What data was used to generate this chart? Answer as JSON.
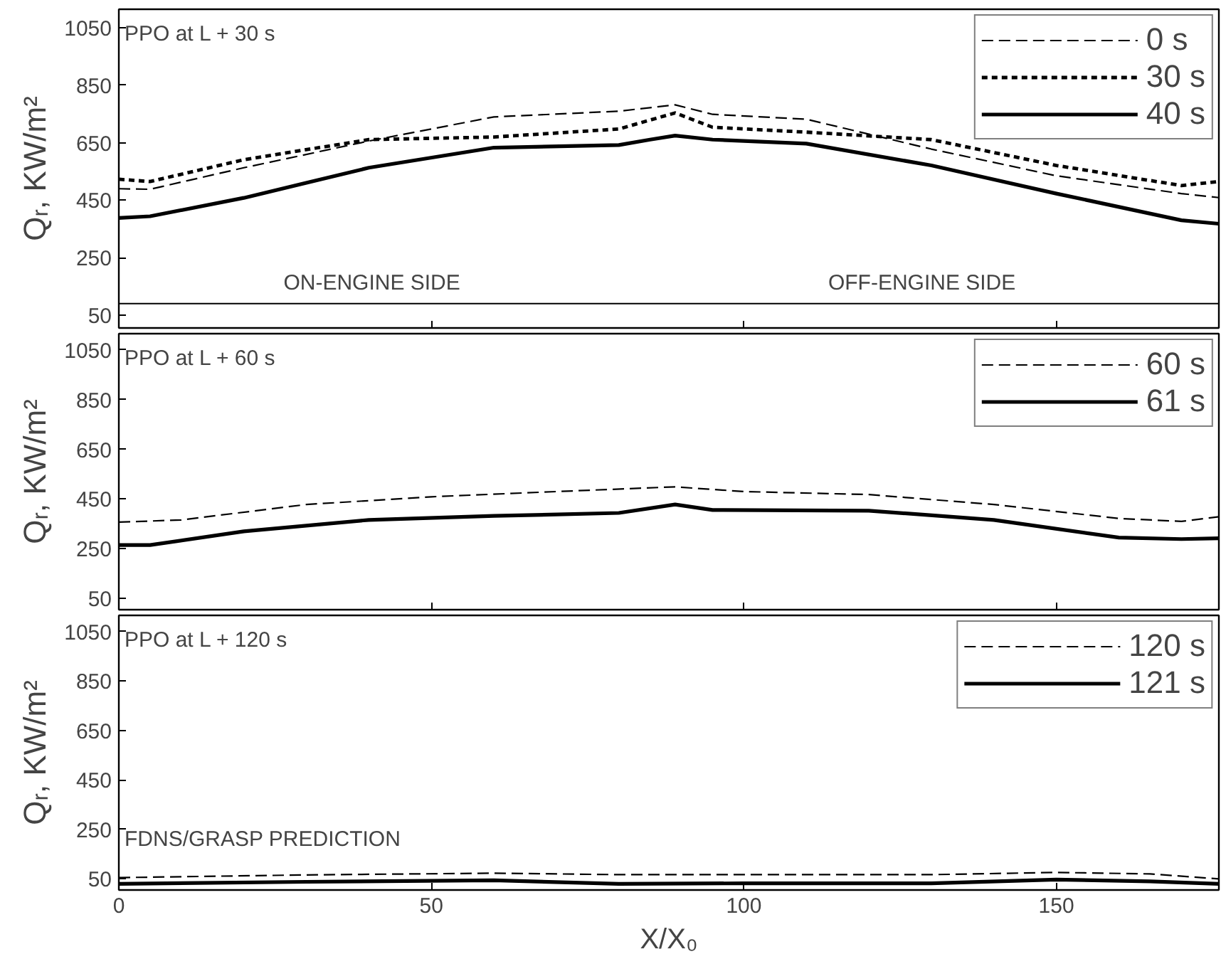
{
  "chart_data": [
    {
      "type": "line",
      "title": "PPO at L + 30 s",
      "ylabel": "Qᵣ, KW/m²",
      "xlim": [
        0,
        176
      ],
      "xticks": [
        0,
        50,
        100,
        150
      ],
      "ylim": [
        5,
        1115
      ],
      "yticks": [
        50,
        250,
        450,
        650,
        850,
        1050
      ],
      "tick_labels": "y",
      "legend": "top right",
      "grid": false,
      "series": [
        {
          "name": "0 s",
          "color": "#000000",
          "line_style": "dashed",
          "x": [
            0,
            5,
            20,
            40,
            60,
            80,
            89,
            95,
            110,
            130,
            150,
            170,
            176
          ],
          "values": [
            490,
            488,
            563,
            656,
            740,
            760,
            782,
            749,
            732,
            628,
            535,
            473,
            459
          ]
        },
        {
          "name": "30 s",
          "color": "#000000",
          "line_style": "dotted",
          "x": [
            0,
            5,
            20,
            40,
            60,
            80,
            89,
            95,
            110,
            130,
            150,
            170,
            176
          ],
          "values": [
            523,
            515,
            591,
            661,
            670,
            698,
            754,
            704,
            687,
            661,
            571,
            501,
            515
          ]
        },
        {
          "name": "40 s",
          "color": "#000000",
          "line_style": "solid",
          "x": [
            0,
            5,
            20,
            40,
            60,
            80,
            85,
            89,
            95,
            110,
            130,
            150,
            170,
            176
          ],
          "values": [
            388,
            394,
            458,
            563,
            633,
            642,
            661,
            675,
            661,
            647,
            571,
            473,
            380,
            368
          ]
        }
      ],
      "ref_lines": [
        {
          "axis": "y",
          "value": 90
        }
      ],
      "annotations": [
        "ON-ENGINE SIDE",
        "OFF-ENGINE SIDE"
      ]
    },
    {
      "type": "line",
      "title": "PPO at L + 60 s",
      "ylabel": "Qᵣ, KW/m²",
      "xlim": [
        0,
        176
      ],
      "xticks": [
        0,
        50,
        100,
        150
      ],
      "ylim": [
        5,
        1115
      ],
      "yticks": [
        50,
        250,
        450,
        650,
        850,
        1050
      ],
      "tick_labels": "y",
      "legend": "top right",
      "grid": false,
      "series": [
        {
          "name": "60 s",
          "color": "#000000",
          "line_style": "dashed",
          "x": [
            0,
            10,
            30,
            50,
            70,
            89,
            100,
            120,
            140,
            160,
            170,
            176
          ],
          "values": [
            357,
            366,
            428,
            459,
            480,
            499,
            480,
            468,
            428,
            372,
            360,
            379
          ]
        },
        {
          "name": "61 s",
          "color": "#000000",
          "line_style": "solid",
          "x": [
            0,
            5,
            20,
            40,
            60,
            80,
            89,
            95,
            120,
            140,
            160,
            170,
            176
          ],
          "values": [
            265,
            265,
            320,
            366,
            382,
            394,
            428,
            406,
            403,
            366,
            295,
            289,
            292
          ]
        }
      ]
    },
    {
      "type": "line",
      "title": "PPO at L + 120 s",
      "xlabel": "X/X₀",
      "ylabel": "Qᵣ, KW/m²",
      "xlim": [
        0,
        176
      ],
      "xticks": [
        0,
        50,
        100,
        150
      ],
      "ylim": [
        5,
        1115
      ],
      "yticks": [
        50,
        250,
        450,
        650,
        850,
        1050
      ],
      "legend": "top right",
      "grid": false,
      "annotations": [
        "FDNS/GRASP PREDICTION"
      ],
      "series": [
        {
          "name": "120 s",
          "color": "#000000",
          "line_style": "dashed",
          "x": [
            0,
            30,
            60,
            80,
            100,
            130,
            150,
            165,
            176
          ],
          "values": [
            55,
            66,
            73,
            67,
            67,
            67,
            76,
            70,
            50
          ]
        },
        {
          "name": "121 s",
          "color": "#000000",
          "line_style": "solid",
          "x": [
            0,
            30,
            60,
            80,
            100,
            130,
            150,
            165,
            176
          ],
          "values": [
            30,
            38,
            44,
            30,
            32,
            32,
            47,
            40,
            30
          ]
        }
      ]
    }
  ]
}
